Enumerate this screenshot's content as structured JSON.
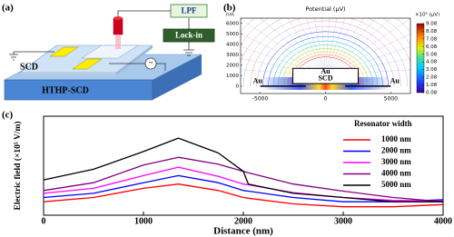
{
  "panels": {
    "a": {
      "label": "(a)",
      "lpf": "LPF",
      "lock_in": "Lock-in",
      "scd": "SCD",
      "substrate": "HTHP-SCD"
    },
    "b": {
      "label": "(b)"
    },
    "c": {
      "label": "(c)"
    }
  },
  "chart_data": [
    {
      "type": "field-map",
      "title": "Potential (μV)",
      "y_unit": "nm",
      "xlim": [
        -6500,
        6500
      ],
      "xticks": [
        -5000,
        0,
        5000
      ],
      "ylim": [
        -700,
        6500
      ],
      "yticks": [
        0,
        1000,
        2000,
        3000,
        4000,
        5000,
        6000
      ],
      "annotations": [
        "Au",
        "SCD",
        "Au",
        "Au"
      ],
      "colorbar": {
        "label": "×10⁵ (μV)",
        "lim": [
          0.08,
          9.08
        ],
        "ticks": [
          0.08,
          1.08,
          2.08,
          3.08,
          4.08,
          5.08,
          6.08,
          7.08,
          8.08,
          9.08
        ]
      }
    },
    {
      "type": "line",
      "xlabel": "Distance (nm)",
      "ylabel": "Electric field (×10⁵ V/m)",
      "xlim": [
        0,
        4000
      ],
      "xticks": [
        0,
        1000,
        2000,
        3000,
        4000
      ],
      "ylim": [
        0,
        7
      ],
      "legend_title": "Resonator width",
      "legend": "upper right",
      "x": [
        0,
        500,
        1000,
        1350,
        1750,
        2000,
        2050,
        2500,
        3000,
        3500,
        4000
      ],
      "series": [
        {
          "name": "1000 nm",
          "color": "#ff0000",
          "values": [
            0.95,
            1.25,
            1.9,
            2.2,
            1.75,
            1.25,
            1.2,
            0.8,
            0.6,
            0.6,
            0.75
          ]
        },
        {
          "name": "2000 nm",
          "color": "#0000ff",
          "values": [
            1.25,
            1.55,
            2.3,
            2.8,
            2.3,
            1.75,
            1.7,
            1.25,
            0.95,
            0.95,
            1.1
          ]
        },
        {
          "name": "3000 nm",
          "color": "#ff00ff",
          "values": [
            1.55,
            1.9,
            2.8,
            3.4,
            2.75,
            2.2,
            2.15,
            1.6,
            1.25,
            1.05,
            1.0
          ]
        },
        {
          "name": "4000 nm",
          "color": "#800080",
          "values": [
            1.75,
            2.3,
            3.55,
            4.1,
            3.6,
            3.1,
            3.0,
            2.2,
            1.7,
            1.25,
            0.95
          ]
        },
        {
          "name": "5000 nm",
          "color": "#000000",
          "values": [
            2.5,
            3.25,
            4.5,
            5.45,
            4.4,
            3.1,
            2.2,
            1.55,
            1.25,
            0.95,
            0.95
          ]
        }
      ]
    }
  ]
}
